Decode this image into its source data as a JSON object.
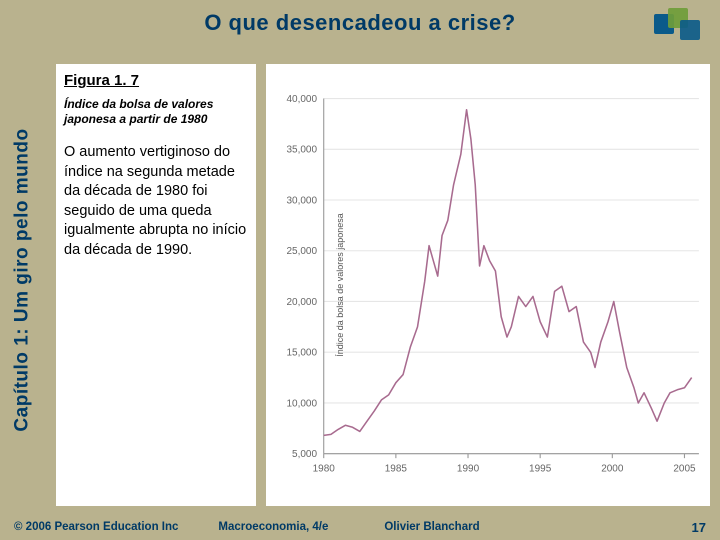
{
  "colors": {
    "slide_bg": "#b9b28e",
    "title_text": "#003a66",
    "sidebar_text": "#003a66",
    "footer_text": "#003a66",
    "logo_accent1": "#0a5a8a",
    "logo_accent2": "#6f9d3a",
    "content_bg": "#ffffff",
    "chart_line": "#a86b8f",
    "chart_grid": "#e6e6e6",
    "chart_axis": "#999999",
    "chart_tick_text": "#666666"
  },
  "header": {
    "title": "O que desencadeou a crise?"
  },
  "sidebar": {
    "label": "Capítulo 1: Um giro pelo mundo"
  },
  "figure": {
    "number": "Figura 1. 7",
    "caption": "Índice da bolsa de valores japonesa a partir de 1980",
    "description": "O aumento vertiginoso do índice na segunda metade da década de 1980 foi seguido de uma queda igualmente abrupta no início da década de 1990."
  },
  "chart": {
    "type": "line",
    "y_axis_label": "Índice da bolsa de valores japonesa",
    "x_ticks": [
      1980,
      1985,
      1990,
      1995,
      2000,
      2005
    ],
    "y_ticks": [
      5000,
      10000,
      15000,
      20000,
      25000,
      30000,
      35000,
      40000
    ],
    "xlim": [
      1980,
      2006
    ],
    "ylim": [
      5000,
      40000
    ],
    "line_color": "#a86b8f",
    "line_width": 1.4,
    "grid_color": "#e6e6e6",
    "axis_color": "#999999",
    "tick_text_color": "#666666",
    "tick_fontsize": 9,
    "background_color": "#ffffff",
    "series": [
      {
        "x": 1980.0,
        "y": 6800
      },
      {
        "x": 1980.5,
        "y": 6900
      },
      {
        "x": 1981.0,
        "y": 7400
      },
      {
        "x": 1981.5,
        "y": 7800
      },
      {
        "x": 1982.0,
        "y": 7600
      },
      {
        "x": 1982.5,
        "y": 7200
      },
      {
        "x": 1983.0,
        "y": 8200
      },
      {
        "x": 1983.5,
        "y": 9200
      },
      {
        "x": 1984.0,
        "y": 10300
      },
      {
        "x": 1984.5,
        "y": 10800
      },
      {
        "x": 1985.0,
        "y": 12000
      },
      {
        "x": 1985.5,
        "y": 12800
      },
      {
        "x": 1986.0,
        "y": 15500
      },
      {
        "x": 1986.5,
        "y": 17500
      },
      {
        "x": 1987.0,
        "y": 22000
      },
      {
        "x": 1987.3,
        "y": 25500
      },
      {
        "x": 1987.6,
        "y": 24000
      },
      {
        "x": 1987.9,
        "y": 22500
      },
      {
        "x": 1988.2,
        "y": 26500
      },
      {
        "x": 1988.6,
        "y": 28000
      },
      {
        "x": 1989.0,
        "y": 31500
      },
      {
        "x": 1989.5,
        "y": 34500
      },
      {
        "x": 1989.9,
        "y": 38900
      },
      {
        "x": 1990.2,
        "y": 36000
      },
      {
        "x": 1990.5,
        "y": 31500
      },
      {
        "x": 1990.8,
        "y": 23500
      },
      {
        "x": 1991.1,
        "y": 25500
      },
      {
        "x": 1991.5,
        "y": 24000
      },
      {
        "x": 1991.9,
        "y": 23000
      },
      {
        "x": 1992.3,
        "y": 18500
      },
      {
        "x": 1992.7,
        "y": 16500
      },
      {
        "x": 1993.0,
        "y": 17500
      },
      {
        "x": 1993.5,
        "y": 20500
      },
      {
        "x": 1994.0,
        "y": 19500
      },
      {
        "x": 1994.5,
        "y": 20500
      },
      {
        "x": 1995.0,
        "y": 18000
      },
      {
        "x": 1995.5,
        "y": 16500
      },
      {
        "x": 1996.0,
        "y": 21000
      },
      {
        "x": 1996.5,
        "y": 21500
      },
      {
        "x": 1997.0,
        "y": 19000
      },
      {
        "x": 1997.5,
        "y": 19500
      },
      {
        "x": 1998.0,
        "y": 16000
      },
      {
        "x": 1998.5,
        "y": 15000
      },
      {
        "x": 1998.8,
        "y": 13500
      },
      {
        "x": 1999.2,
        "y": 16000
      },
      {
        "x": 1999.7,
        "y": 18000
      },
      {
        "x": 2000.1,
        "y": 20000
      },
      {
        "x": 2000.5,
        "y": 17000
      },
      {
        "x": 2001.0,
        "y": 13500
      },
      {
        "x": 2001.5,
        "y": 11500
      },
      {
        "x": 2001.8,
        "y": 10000
      },
      {
        "x": 2002.2,
        "y": 11000
      },
      {
        "x": 2002.7,
        "y": 9500
      },
      {
        "x": 2003.1,
        "y": 8200
      },
      {
        "x": 2003.6,
        "y": 10000
      },
      {
        "x": 2004.0,
        "y": 11000
      },
      {
        "x": 2004.5,
        "y": 11300
      },
      {
        "x": 2005.0,
        "y": 11500
      },
      {
        "x": 2005.5,
        "y": 12500
      }
    ]
  },
  "footer": {
    "copyright": "© 2006 Pearson Education Inc",
    "book": "Macroeconomia, 4/e",
    "author": "Olivier Blanchard",
    "page": "17"
  }
}
